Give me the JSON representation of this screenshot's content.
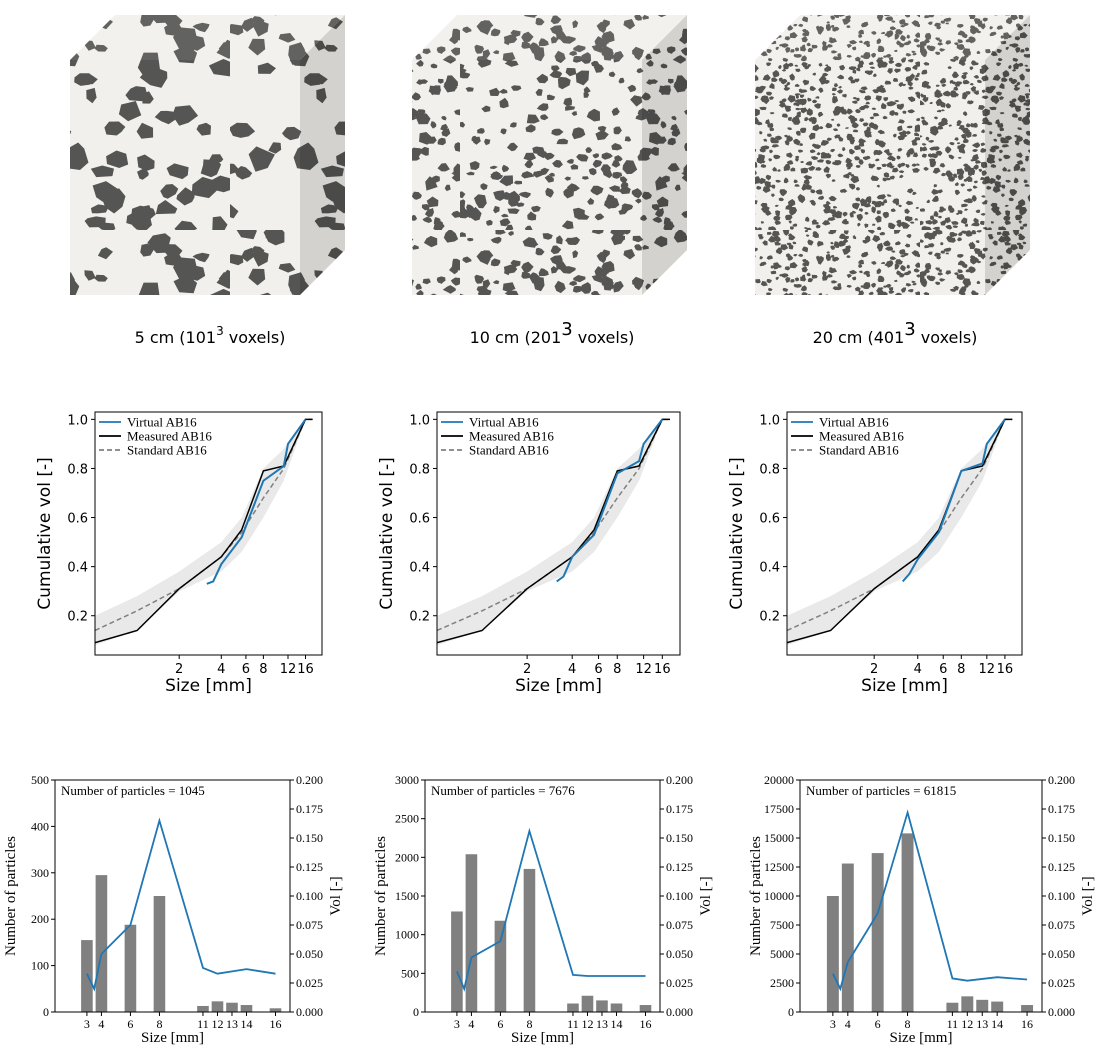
{
  "images": [
    {
      "caption": {
        "prefix": "5 cm (101",
        "sup": "3",
        "suffix": " voxels)"
      }
    },
    {
      "caption": {
        "prefix": "10 cm (201",
        "sup": "3",
        "suffix": " voxels)"
      }
    },
    {
      "caption": {
        "prefix": "20 cm (401",
        "sup": "3",
        "suffix": " voxels)"
      }
    }
  ],
  "chart_data": [
    {
      "type": "line",
      "xlabel": "Size [mm]",
      "ylabel": "Cumulative vol [-]",
      "log_x": true,
      "xlim": [
        0.5,
        21
      ],
      "xticks": [
        2,
        4,
        6,
        8,
        12,
        16
      ],
      "ylim": [
        0.04,
        1.03
      ],
      "yticks": [
        0.2,
        0.4,
        0.6,
        0.8,
        {
          "value": 1,
          "label": "1.0"
        }
      ],
      "legend": "upper left",
      "band": {
        "color": "#e9e9e9",
        "x": [
          0.5,
          1,
          2,
          4,
          5.6,
          8,
          11.2,
          16
        ],
        "lower": [
          0.08,
          0.14,
          0.3,
          0.38,
          0.46,
          0.6,
          0.75,
          1.0
        ],
        "upper": [
          0.2,
          0.28,
          0.38,
          0.5,
          0.6,
          0.8,
          0.88,
          1.0
        ]
      },
      "series": [
        {
          "name": "Virtual AB16",
          "color": "#1f77b4",
          "x": [
            3.15,
            3.5,
            4,
            5.6,
            8,
            11.2,
            12,
            16
          ],
          "values": [
            0.33,
            0.34,
            0.41,
            0.52,
            0.75,
            0.81,
            0.9,
            1.0
          ]
        },
        {
          "name": "Measured AB16",
          "color": "#000000",
          "x": [
            0.5,
            1,
            2,
            4,
            5.6,
            8,
            11.2,
            16,
            18
          ],
          "values": [
            0.09,
            0.14,
            0.31,
            0.44,
            0.55,
            0.79,
            0.81,
            1.0,
            1.0
          ]
        },
        {
          "name": "Standard AB16",
          "color": "#808080",
          "dash": true,
          "x": [
            0.5,
            1,
            2,
            4,
            5.6,
            8,
            11.2,
            16,
            18
          ],
          "values": [
            0.14,
            0.22,
            0.31,
            0.44,
            0.54,
            0.68,
            0.8,
            1.0,
            1.0
          ]
        }
      ]
    },
    {
      "type": "line",
      "xlabel": "Size [mm]",
      "ylabel": "Cumulative vol [-]",
      "log_x": true,
      "xlim": [
        0.5,
        21
      ],
      "xticks": [
        2,
        4,
        6,
        8,
        12,
        16
      ],
      "ylim": [
        0.04,
        1.03
      ],
      "yticks": [
        0.2,
        0.4,
        0.6,
        0.8,
        {
          "value": 1,
          "label": "1.0"
        }
      ],
      "legend": "upper left",
      "band": {
        "color": "#e9e9e9",
        "x": [
          0.5,
          1,
          2,
          4,
          5.6,
          8,
          11.2,
          16
        ],
        "lower": [
          0.08,
          0.14,
          0.3,
          0.38,
          0.46,
          0.6,
          0.75,
          1.0
        ],
        "upper": [
          0.2,
          0.28,
          0.38,
          0.5,
          0.6,
          0.8,
          0.88,
          1.0
        ]
      },
      "series": [
        {
          "name": "Virtual AB16",
          "color": "#1f77b4",
          "x": [
            3.15,
            3.5,
            4,
            5.6,
            8,
            11.2,
            12,
            16
          ],
          "values": [
            0.34,
            0.36,
            0.44,
            0.53,
            0.78,
            0.83,
            0.9,
            1.0
          ]
        },
        {
          "name": "Measured AB16",
          "color": "#000000",
          "x": [
            0.5,
            1,
            2,
            4,
            5.6,
            8,
            11.2,
            16,
            18
          ],
          "values": [
            0.09,
            0.14,
            0.31,
            0.44,
            0.55,
            0.79,
            0.81,
            1.0,
            1.0
          ]
        },
        {
          "name": "Standard AB16",
          "color": "#808080",
          "dash": true,
          "x": [
            0.5,
            1,
            2,
            4,
            5.6,
            8,
            11.2,
            16,
            18
          ],
          "values": [
            0.14,
            0.22,
            0.31,
            0.44,
            0.54,
            0.68,
            0.8,
            1.0,
            1.0
          ]
        }
      ]
    },
    {
      "type": "line",
      "xlabel": "Size [mm]",
      "ylabel": "Cumulative vol [-]",
      "log_x": true,
      "xlim": [
        0.5,
        21
      ],
      "xticks": [
        2,
        4,
        6,
        8,
        12,
        16
      ],
      "ylim": [
        0.04,
        1.03
      ],
      "yticks": [
        0.2,
        0.4,
        0.6,
        0.8,
        {
          "value": 1,
          "label": "1.0"
        }
      ],
      "legend": "upper left",
      "band": {
        "color": "#e9e9e9",
        "x": [
          0.5,
          1,
          2,
          4,
          5.6,
          8,
          11.2,
          16
        ],
        "lower": [
          0.08,
          0.14,
          0.3,
          0.38,
          0.46,
          0.6,
          0.75,
          1.0
        ],
        "upper": [
          0.2,
          0.28,
          0.38,
          0.5,
          0.6,
          0.8,
          0.88,
          1.0
        ]
      },
      "series": [
        {
          "name": "Virtual AB16",
          "color": "#1f77b4",
          "x": [
            3.15,
            3.5,
            4,
            5.6,
            8,
            11.2,
            12,
            16
          ],
          "values": [
            0.34,
            0.37,
            0.43,
            0.54,
            0.79,
            0.82,
            0.9,
            1.0
          ]
        },
        {
          "name": "Measured AB16",
          "color": "#000000",
          "x": [
            0.5,
            1,
            2,
            4,
            5.6,
            8,
            11.2,
            16,
            18
          ],
          "values": [
            0.09,
            0.14,
            0.31,
            0.44,
            0.55,
            0.79,
            0.81,
            1.0,
            1.0
          ]
        },
        {
          "name": "Standard AB16",
          "color": "#808080",
          "dash": true,
          "x": [
            0.5,
            1,
            2,
            4,
            5.6,
            8,
            11.2,
            16,
            18
          ],
          "values": [
            0.14,
            0.22,
            0.31,
            0.44,
            0.54,
            0.68,
            0.8,
            1.0,
            1.0
          ]
        }
      ]
    },
    {
      "type": "bar",
      "annotation": "Number of particles = 1045",
      "xlabel": "Size [mm]",
      "ylabel": "Number of particles",
      "y2label": "Vol [-]",
      "xlim": [
        0.8,
        17
      ],
      "xticks": [
        3,
        4,
        6,
        8,
        11,
        12,
        13,
        14,
        16
      ],
      "ylim": [
        0,
        500
      ],
      "yticks": [
        0,
        100,
        200,
        300,
        400,
        500
      ],
      "y2lim": [
        0,
        0.2
      ],
      "y2ticks": [
        {
          "value": 0,
          "label": "0.000"
        },
        {
          "value": 0.025,
          "label": "0.025"
        },
        {
          "value": 0.05,
          "label": "0.050"
        },
        {
          "value": 0.075,
          "label": "0.075"
        },
        {
          "value": 0.1,
          "label": "0.100"
        },
        {
          "value": 0.125,
          "label": "0.125"
        },
        {
          "value": 0.15,
          "label": "0.150"
        },
        {
          "value": 0.175,
          "label": "0.175"
        },
        {
          "value": 0.2,
          "label": "0.200"
        }
      ],
      "series": [
        {
          "color": "#808080",
          "x": [
            3,
            4,
            6,
            8,
            11,
            12,
            13,
            14,
            16
          ],
          "values": [
            155,
            295,
            188,
            250,
            13,
            23,
            20,
            15,
            8
          ]
        },
        {
          "color": "#1f77b4",
          "axis": "y2",
          "x": [
            3,
            3.5,
            4,
            6,
            8,
            11,
            12,
            14,
            16
          ],
          "values": [
            0.033,
            0.02,
            0.05,
            0.075,
            0.165,
            0.038,
            0.033,
            0.037,
            0.033
          ]
        }
      ]
    },
    {
      "type": "bar",
      "annotation": "Number of particles = 7676",
      "xlabel": "Size [mm]",
      "ylabel": "Number of particles",
      "y2label": "Vol [-]",
      "xlim": [
        0.8,
        17
      ],
      "xticks": [
        3,
        4,
        6,
        8,
        11,
        12,
        13,
        14,
        16
      ],
      "ylim": [
        0,
        3000
      ],
      "yticks": [
        0,
        500,
        1000,
        1500,
        2000,
        2500,
        3000
      ],
      "y2lim": [
        0,
        0.2
      ],
      "y2ticks": [
        {
          "value": 0,
          "label": "0.000"
        },
        {
          "value": 0.025,
          "label": "0.025"
        },
        {
          "value": 0.05,
          "label": "0.050"
        },
        {
          "value": 0.075,
          "label": "0.075"
        },
        {
          "value": 0.1,
          "label": "0.100"
        },
        {
          "value": 0.125,
          "label": "0.125"
        },
        {
          "value": 0.15,
          "label": "0.150"
        },
        {
          "value": 0.175,
          "label": "0.175"
        },
        {
          "value": 0.2,
          "label": "0.200"
        }
      ],
      "series": [
        {
          "color": "#808080",
          "x": [
            3,
            4,
            6,
            8,
            11,
            12,
            13,
            14,
            16
          ],
          "values": [
            1300,
            2040,
            1180,
            1850,
            110,
            210,
            150,
            110,
            90
          ]
        },
        {
          "color": "#1f77b4",
          "axis": "y2",
          "x": [
            3,
            3.5,
            4,
            6,
            8,
            11,
            12,
            14,
            16
          ],
          "values": [
            0.035,
            0.02,
            0.047,
            0.061,
            0.156,
            0.032,
            0.031,
            0.031,
            0.031
          ]
        }
      ]
    },
    {
      "type": "bar",
      "annotation": "Number of particles = 61815",
      "xlabel": "Size [mm]",
      "ylabel": "Number of particles",
      "y2label": "Vol [-]",
      "xlim": [
        0.8,
        17
      ],
      "xticks": [
        3,
        4,
        6,
        8,
        11,
        12,
        13,
        14,
        16
      ],
      "ylim": [
        0,
        20000
      ],
      "yticks": [
        0,
        2500,
        5000,
        7500,
        10000,
        12500,
        15000,
        17500,
        20000
      ],
      "y2lim": [
        0,
        0.2
      ],
      "y2ticks": [
        {
          "value": 0,
          "label": "0.000"
        },
        {
          "value": 0.025,
          "label": "0.025"
        },
        {
          "value": 0.05,
          "label": "0.050"
        },
        {
          "value": 0.075,
          "label": "0.075"
        },
        {
          "value": 0.1,
          "label": "0.100"
        },
        {
          "value": 0.125,
          "label": "0.125"
        },
        {
          "value": 0.15,
          "label": "0.150"
        },
        {
          "value": 0.175,
          "label": "0.175"
        },
        {
          "value": 0.2,
          "label": "0.200"
        }
      ],
      "series": [
        {
          "color": "#808080",
          "x": [
            3,
            4,
            6,
            8,
            11,
            12,
            13,
            14,
            16
          ],
          "values": [
            10000,
            12800,
            13700,
            15400,
            800,
            1350,
            1050,
            900,
            600
          ]
        },
        {
          "color": "#1f77b4",
          "axis": "y2",
          "x": [
            3,
            3.5,
            4,
            6,
            8,
            11,
            12,
            14,
            16
          ],
          "values": [
            0.033,
            0.02,
            0.043,
            0.085,
            0.172,
            0.029,
            0.027,
            0.03,
            0.028
          ]
        }
      ]
    }
  ]
}
